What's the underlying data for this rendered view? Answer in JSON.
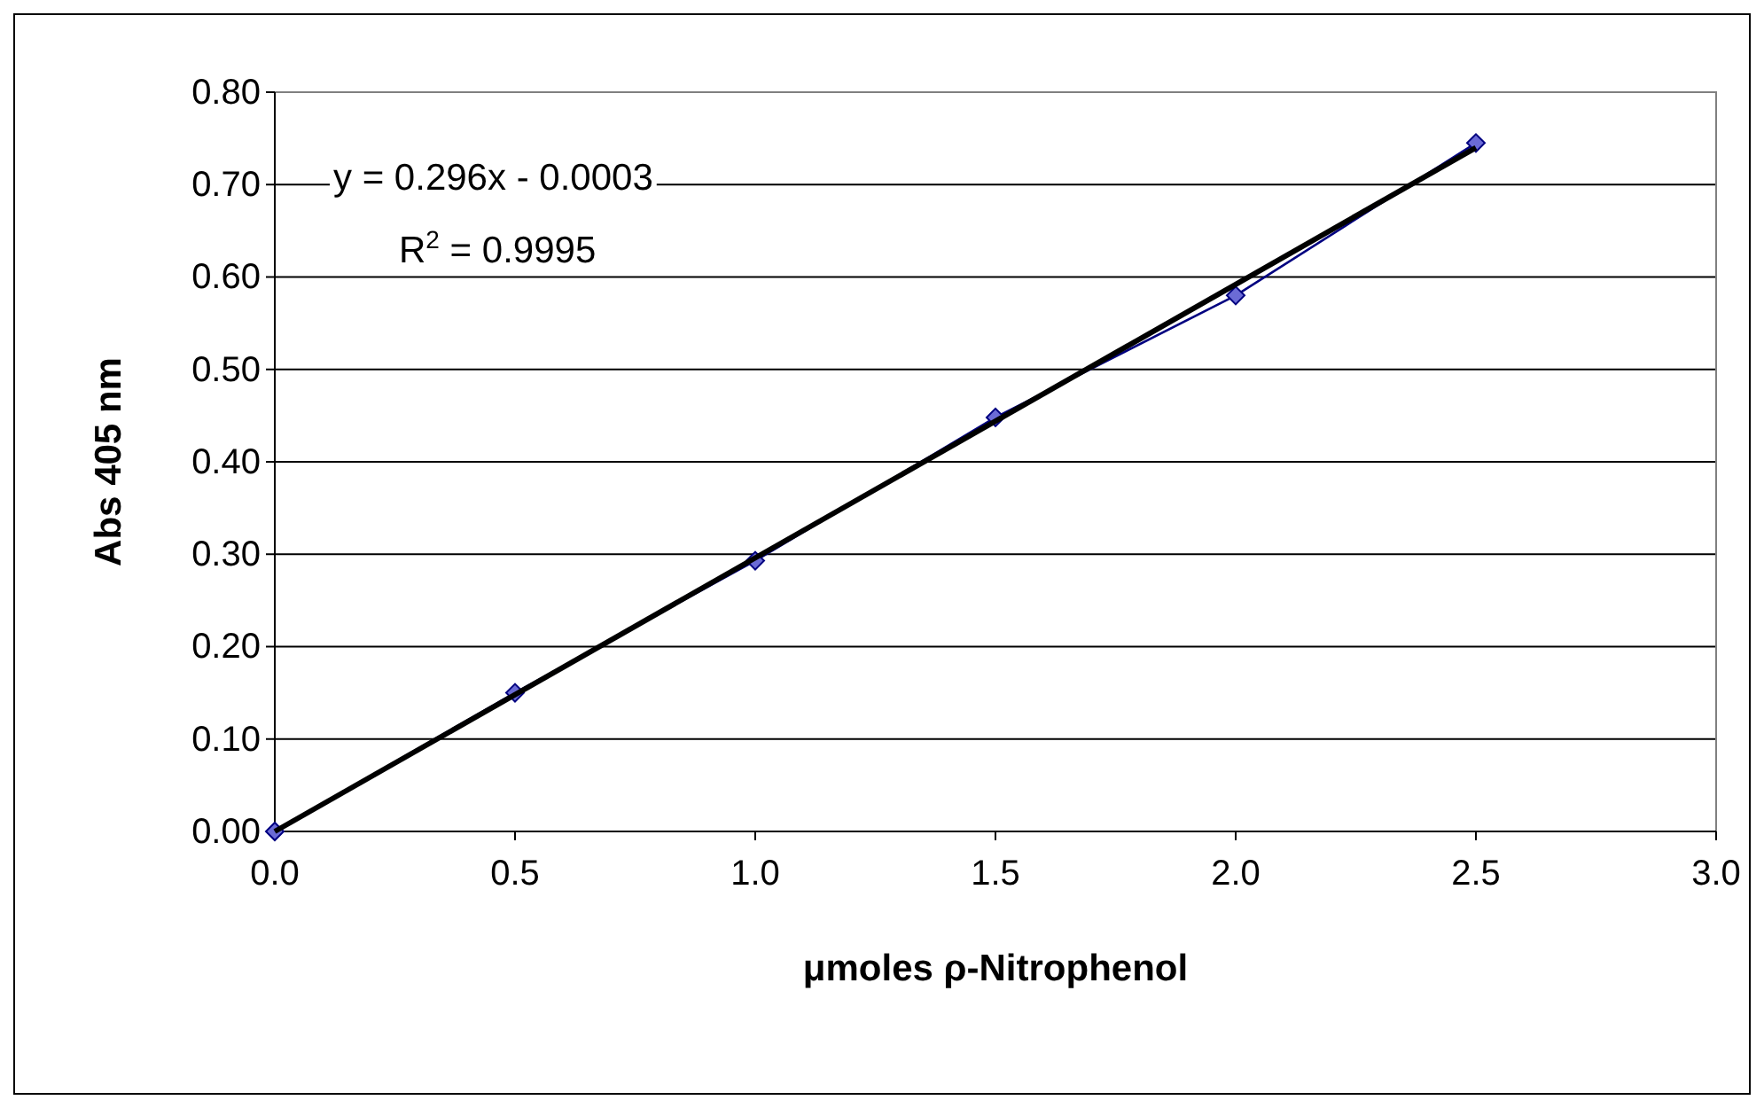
{
  "chart_data": {
    "type": "line",
    "xlabel": "μmoles  ρ-Nitrophenol",
    "ylabel": "Abs 405 nm",
    "xlim": [
      0,
      3
    ],
    "xticks": [
      {
        "value": 0,
        "label": "0.0"
      },
      {
        "value": 0.5,
        "label": "0.5"
      },
      {
        "value": 1,
        "label": "1.0"
      },
      {
        "value": 1.5,
        "label": "1.5"
      },
      {
        "value": 2,
        "label": "2.0"
      },
      {
        "value": 2.5,
        "label": "2.5"
      },
      {
        "value": 3,
        "label": "3.0"
      }
    ],
    "ylim": [
      0,
      0.8
    ],
    "yticks": [
      {
        "value": 0,
        "label": "0.00"
      },
      {
        "value": 0.1,
        "label": "0.10"
      },
      {
        "value": 0.2,
        "label": "0.20"
      },
      {
        "value": 0.3,
        "label": "0.30"
      },
      {
        "value": 0.4,
        "label": "0.40"
      },
      {
        "value": 0.5,
        "label": "0.50"
      },
      {
        "value": 0.6,
        "label": "0.60"
      },
      {
        "value": 0.7,
        "label": "0.70"
      },
      {
        "value": 0.8,
        "label": "0.80"
      }
    ],
    "grid": "y",
    "marker": "diamond",
    "series": [
      {
        "color": "#000080",
        "x": [
          0,
          0.5,
          1,
          1.5,
          2,
          2.5
        ],
        "values": [
          0,
          0.15,
          0.293,
          0.448,
          0.58,
          0.745
        ]
      },
      {
        "color": "#000000",
        "marker": "none",
        "x": [
          0,
          2.5
        ],
        "values": [
          0,
          0.74
        ]
      }
    ],
    "annotations": [
      "y = 0.296x - 0.0003",
      "R$^{2}$ = 0.9995"
    ]
  }
}
